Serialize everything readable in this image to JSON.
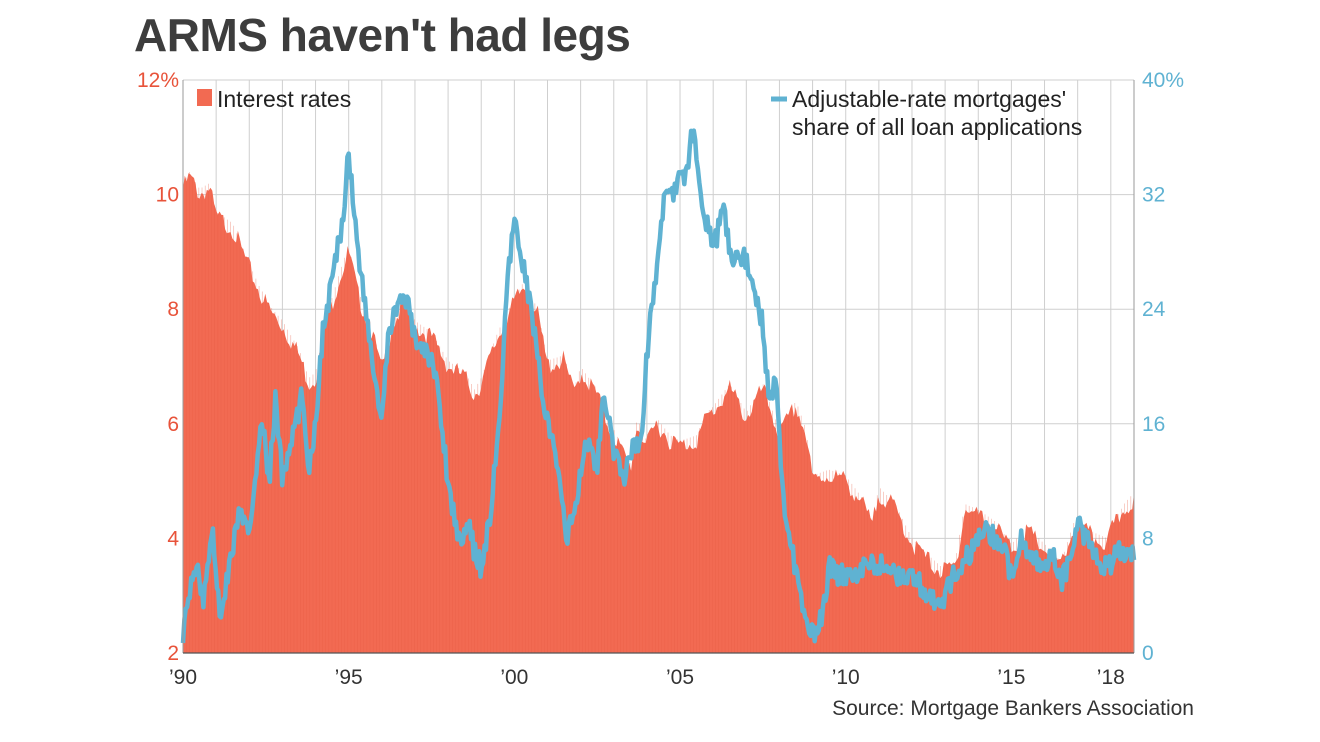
{
  "title": "ARMS haven't had legs",
  "source": "Source: Mortgage Bankers Association",
  "colors": {
    "rates": "#f26a52",
    "arm": "#5fb2d2",
    "grid": "#cfcfcf",
    "title": "#3d3d3d"
  },
  "chart_data": {
    "type": "area+line",
    "x_range": [
      1990,
      2018.7
    ],
    "x_ticks": [
      {
        "value": 1990,
        "label": "’90"
      },
      {
        "value": 1995,
        "label": "’95"
      },
      {
        "value": 2000,
        "label": "’00"
      },
      {
        "value": 2005,
        "label": "’05"
      },
      {
        "value": 2010,
        "label": "’10"
      },
      {
        "value": 2015,
        "label": "’15"
      },
      {
        "value": 2018,
        "label": "’18"
      }
    ],
    "left_axis": {
      "range": [
        2,
        12
      ],
      "ticks": [
        {
          "value": 12,
          "label": "12%"
        },
        {
          "value": 10,
          "label": "10"
        },
        {
          "value": 8,
          "label": "8"
        },
        {
          "value": 6,
          "label": "6"
        },
        {
          "value": 4,
          "label": "4"
        },
        {
          "value": 2,
          "label": "2"
        }
      ]
    },
    "right_axis": {
      "range": [
        0,
        40
      ],
      "ticks": [
        {
          "value": 40,
          "label": "40%"
        },
        {
          "value": 32,
          "label": "32"
        },
        {
          "value": 24,
          "label": "24"
        },
        {
          "value": 16,
          "label": "16"
        },
        {
          "value": 8,
          "label": "8"
        },
        {
          "value": 0,
          "label": "0"
        }
      ]
    },
    "grid": true,
    "legend": [
      {
        "label": "Interest rates",
        "marker": "square",
        "position": "top-left"
      },
      {
        "label_lines": [
          "Adjustable-rate mortgages'",
          "share of all loan applications"
        ],
        "marker": "line",
        "position": "top-right"
      }
    ],
    "series": [
      {
        "name": "Interest rates",
        "axis": "left",
        "style": "area",
        "points": [
          [
            1990.0,
            10.2
          ],
          [
            1990.2,
            10.4
          ],
          [
            1990.5,
            10.1
          ],
          [
            1990.8,
            10.2
          ],
          [
            1991.0,
            9.7
          ],
          [
            1991.5,
            9.5
          ],
          [
            1992.0,
            8.8
          ],
          [
            1992.3,
            8.4
          ],
          [
            1992.7,
            8.0
          ],
          [
            1993.0,
            7.8
          ],
          [
            1993.5,
            7.3
          ],
          [
            1993.8,
            6.8
          ],
          [
            1994.0,
            6.9
          ],
          [
            1994.3,
            7.8
          ],
          [
            1994.7,
            8.6
          ],
          [
            1995.0,
            9.1
          ],
          [
            1995.3,
            8.3
          ],
          [
            1995.7,
            7.7
          ],
          [
            1996.0,
            7.0
          ],
          [
            1996.3,
            7.8
          ],
          [
            1996.7,
            8.2
          ],
          [
            1997.0,
            7.8
          ],
          [
            1997.5,
            7.6
          ],
          [
            1998.0,
            7.1
          ],
          [
            1998.5,
            6.9
          ],
          [
            1998.8,
            6.6
          ],
          [
            1999.0,
            6.8
          ],
          [
            1999.5,
            7.6
          ],
          [
            2000.0,
            8.2
          ],
          [
            2000.3,
            8.5
          ],
          [
            2000.7,
            8.0
          ],
          [
            2001.0,
            7.1
          ],
          [
            2001.5,
            7.2
          ],
          [
            2001.8,
            6.6
          ],
          [
            2002.0,
            7.0
          ],
          [
            2002.5,
            6.6
          ],
          [
            2002.8,
            6.1
          ],
          [
            2003.0,
            5.9
          ],
          [
            2003.5,
            5.3
          ],
          [
            2003.7,
            6.1
          ],
          [
            2004.0,
            5.7
          ],
          [
            2004.3,
            6.1
          ],
          [
            2004.7,
            5.8
          ],
          [
            2005.0,
            5.7
          ],
          [
            2005.5,
            5.8
          ],
          [
            2005.8,
            6.2
          ],
          [
            2006.0,
            6.3
          ],
          [
            2006.5,
            6.7
          ],
          [
            2006.8,
            6.4
          ],
          [
            2007.0,
            6.2
          ],
          [
            2007.5,
            6.7
          ],
          [
            2008.0,
            5.9
          ],
          [
            2008.5,
            6.4
          ],
          [
            2008.8,
            5.9
          ],
          [
            2009.0,
            5.1
          ],
          [
            2009.5,
            5.2
          ],
          [
            2010.0,
            5.1
          ],
          [
            2010.5,
            4.7
          ],
          [
            2010.8,
            4.3
          ],
          [
            2011.0,
            4.9
          ],
          [
            2011.5,
            4.6
          ],
          [
            2012.0,
            4.0
          ],
          [
            2012.5,
            3.7
          ],
          [
            2012.9,
            3.5
          ],
          [
            2013.3,
            3.6
          ],
          [
            2013.6,
            4.6
          ],
          [
            2014.0,
            4.5
          ],
          [
            2014.5,
            4.3
          ],
          [
            2015.0,
            3.9
          ],
          [
            2015.5,
            4.2
          ],
          [
            2016.0,
            3.9
          ],
          [
            2016.5,
            3.6
          ],
          [
            2016.9,
            4.3
          ],
          [
            2017.0,
            4.3
          ],
          [
            2017.5,
            4.1
          ],
          [
            2017.9,
            4.0
          ],
          [
            2018.0,
            4.2
          ],
          [
            2018.4,
            4.6
          ],
          [
            2018.7,
            4.8
          ]
        ]
      },
      {
        "name": "Adjustable-rate mortgages' share of all loan applications",
        "axis": "right",
        "style": "line",
        "points": [
          [
            1990.0,
            1.5
          ],
          [
            1990.2,
            4.0
          ],
          [
            1990.4,
            6.5
          ],
          [
            1990.6,
            3.5
          ],
          [
            1990.9,
            9.0
          ],
          [
            1991.1,
            2.5
          ],
          [
            1991.4,
            6.0
          ],
          [
            1991.7,
            10.0
          ],
          [
            1992.0,
            8.0
          ],
          [
            1992.2,
            13.0
          ],
          [
            1992.4,
            16.0
          ],
          [
            1992.6,
            12.0
          ],
          [
            1992.8,
            18.0
          ],
          [
            1993.0,
            12.0
          ],
          [
            1993.3,
            15.0
          ],
          [
            1993.6,
            18.0
          ],
          [
            1993.8,
            13.0
          ],
          [
            1994.0,
            16.0
          ],
          [
            1994.2,
            22.0
          ],
          [
            1994.5,
            26.0
          ],
          [
            1994.8,
            30.0
          ],
          [
            1995.0,
            35.0
          ],
          [
            1995.2,
            30.0
          ],
          [
            1995.5,
            24.0
          ],
          [
            1995.8,
            19.0
          ],
          [
            1996.0,
            16.0
          ],
          [
            1996.2,
            22.0
          ],
          [
            1996.5,
            25.0
          ],
          [
            1996.8,
            24.0
          ],
          [
            1997.0,
            22.0
          ],
          [
            1997.3,
            21.0
          ],
          [
            1997.6,
            20.0
          ],
          [
            1997.8,
            16.0
          ],
          [
            1998.0,
            12.0
          ],
          [
            1998.3,
            8.0
          ],
          [
            1998.6,
            9.0
          ],
          [
            1998.8,
            7.0
          ],
          [
            1999.0,
            6.0
          ],
          [
            1999.3,
            10.0
          ],
          [
            1999.6,
            18.0
          ],
          [
            1999.8,
            26.0
          ],
          [
            2000.0,
            30.0
          ],
          [
            2000.2,
            28.0
          ],
          [
            2000.5,
            24.0
          ],
          [
            2000.8,
            19.0
          ],
          [
            2001.0,
            16.0
          ],
          [
            2001.3,
            13.0
          ],
          [
            2001.6,
            8.0
          ],
          [
            2001.9,
            11.0
          ],
          [
            2002.2,
            15.0
          ],
          [
            2002.5,
            13.0
          ],
          [
            2002.7,
            18.0
          ],
          [
            2003.0,
            14.0
          ],
          [
            2003.3,
            12.0
          ],
          [
            2003.6,
            15.0
          ],
          [
            2003.8,
            14.0
          ],
          [
            2004.0,
            21.0
          ],
          [
            2004.3,
            27.0
          ],
          [
            2004.6,
            33.0
          ],
          [
            2004.8,
            32.0
          ],
          [
            2005.0,
            34.0
          ],
          [
            2005.2,
            33.0
          ],
          [
            2005.4,
            37.0
          ],
          [
            2005.7,
            31.0
          ],
          [
            2006.0,
            28.0
          ],
          [
            2006.3,
            31.0
          ],
          [
            2006.6,
            27.0
          ],
          [
            2006.9,
            28.0
          ],
          [
            2007.2,
            26.0
          ],
          [
            2007.5,
            23.0
          ],
          [
            2007.7,
            17.0
          ],
          [
            2007.9,
            20.0
          ],
          [
            2008.1,
            11.0
          ],
          [
            2008.4,
            7.0
          ],
          [
            2008.6,
            4.0
          ],
          [
            2008.8,
            2.0
          ],
          [
            2009.0,
            1.2
          ],
          [
            2009.3,
            2.5
          ],
          [
            2009.5,
            6.0
          ],
          [
            2009.8,
            5.5
          ],
          [
            2010.0,
            5.5
          ],
          [
            2010.5,
            5.8
          ],
          [
            2011.0,
            6.2
          ],
          [
            2011.5,
            5.6
          ],
          [
            2012.0,
            5.2
          ],
          [
            2012.4,
            4.5
          ],
          [
            2012.8,
            3.0
          ],
          [
            2013.0,
            4.0
          ],
          [
            2013.4,
            6.0
          ],
          [
            2013.8,
            7.0
          ],
          [
            2014.0,
            8.0
          ],
          [
            2014.3,
            8.5
          ],
          [
            2014.7,
            7.5
          ],
          [
            2015.0,
            5.5
          ],
          [
            2015.3,
            8.0
          ],
          [
            2015.6,
            7.0
          ],
          [
            2015.9,
            6.0
          ],
          [
            2016.2,
            7.0
          ],
          [
            2016.5,
            5.0
          ],
          [
            2016.8,
            6.5
          ],
          [
            2017.0,
            9.0
          ],
          [
            2017.3,
            8.0
          ],
          [
            2017.6,
            6.5
          ],
          [
            2017.9,
            6.0
          ],
          [
            2018.2,
            7.0
          ],
          [
            2018.5,
            7.2
          ],
          [
            2018.7,
            7.0
          ]
        ]
      }
    ]
  }
}
